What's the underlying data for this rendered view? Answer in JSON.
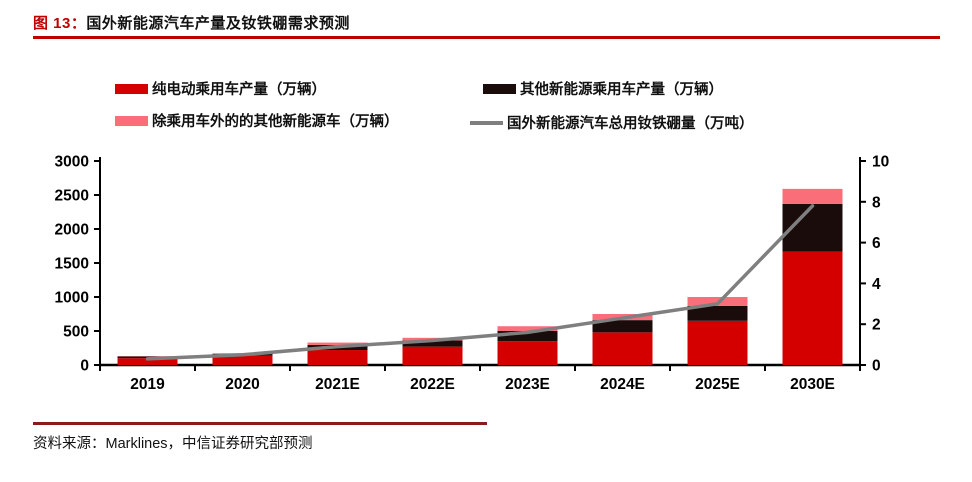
{
  "title": {
    "prefix": "图 13：",
    "text": "国外新能源汽车产量及钕铁硼需求预测"
  },
  "source_note": "资料来源：Marklines，中信证券研究部预测",
  "colors": {
    "accent_red": "#c00000",
    "footer_rule": "#8b1a1a",
    "axis_black": "#000000",
    "bar_red": "#d40000",
    "bar_black": "#1b0c0c",
    "bar_pink": "#fa6e79",
    "line_gray": "#7f7f7f"
  },
  "chart_data": {
    "type": "bar",
    "subtype": "stacked-bars-with-line",
    "categories": [
      "2019",
      "2020",
      "2021E",
      "2022E",
      "2023E",
      "2024E",
      "2025E",
      "2030E"
    ],
    "series": [
      {
        "name": "纯电动乘用车产量（万辆）",
        "kind": "bar",
        "color": "#d40000",
        "values": [
          100,
          135,
          220,
          270,
          350,
          480,
          650,
          1670
        ]
      },
      {
        "name": "其他新能源乘用车产量（万辆）",
        "kind": "bar",
        "color": "#1b0c0c",
        "values": [
          25,
          30,
          75,
          90,
          150,
          180,
          220,
          700
        ]
      },
      {
        "name": "除乘用车外的的其他新能源车（万辆）",
        "kind": "bar",
        "color": "#fa6e79",
        "values": [
          5,
          8,
          35,
          40,
          70,
          90,
          130,
          220
        ]
      },
      {
        "name": "国外新能源汽车总用钕铁硼量（万吨）",
        "kind": "line",
        "axis": "right",
        "color": "#7f7f7f",
        "values": [
          0.3,
          0.5,
          0.9,
          1.2,
          1.6,
          2.3,
          3.0,
          7.8
        ]
      }
    ],
    "left_axis": {
      "min": 0,
      "max": 3000,
      "step": 500
    },
    "right_axis": {
      "min": 0,
      "max": 10,
      "step": 2
    },
    "legend_position": "top",
    "grid": false
  }
}
